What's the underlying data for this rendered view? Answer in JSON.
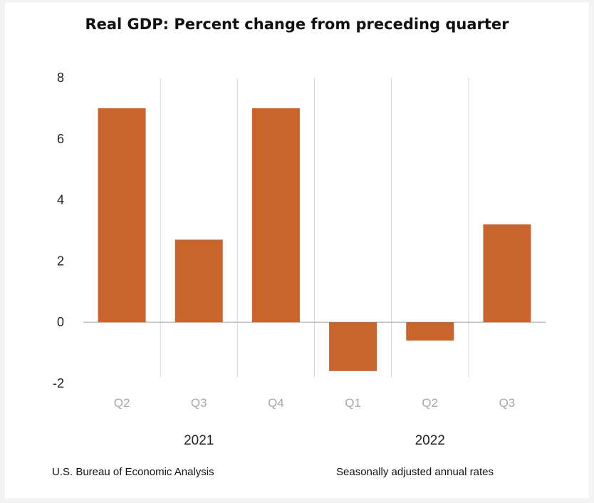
{
  "chart_data": {
    "type": "bar",
    "title": "Real GDP:  Percent change from preceding quarter",
    "categories": [
      "Q2",
      "Q3",
      "Q4",
      "Q1",
      "Q2",
      "Q3"
    ],
    "groups": [
      {
        "label": "2021",
        "categories": [
          "Q2",
          "Q3",
          "Q4"
        ]
      },
      {
        "label": "2022",
        "categories": [
          "Q1",
          "Q2",
          "Q3"
        ]
      }
    ],
    "series": [
      {
        "values": [
          7.0,
          2.7,
          7.0,
          -1.6,
          -0.6,
          3.2
        ],
        "color": "#c8642c"
      }
    ],
    "ylim": [
      -2,
      8
    ],
    "yticks": [
      8,
      6,
      4,
      2,
      0,
      -2
    ],
    "xlabel": "",
    "ylabel": "",
    "grid": false
  },
  "footer": {
    "source": "U.S. Bureau of Economic Analysis",
    "note": "Seasonally adjusted annual rates"
  },
  "colors": {
    "bar": "#c8642c",
    "background": "#f3f3f3",
    "panel": "#ffffff"
  }
}
